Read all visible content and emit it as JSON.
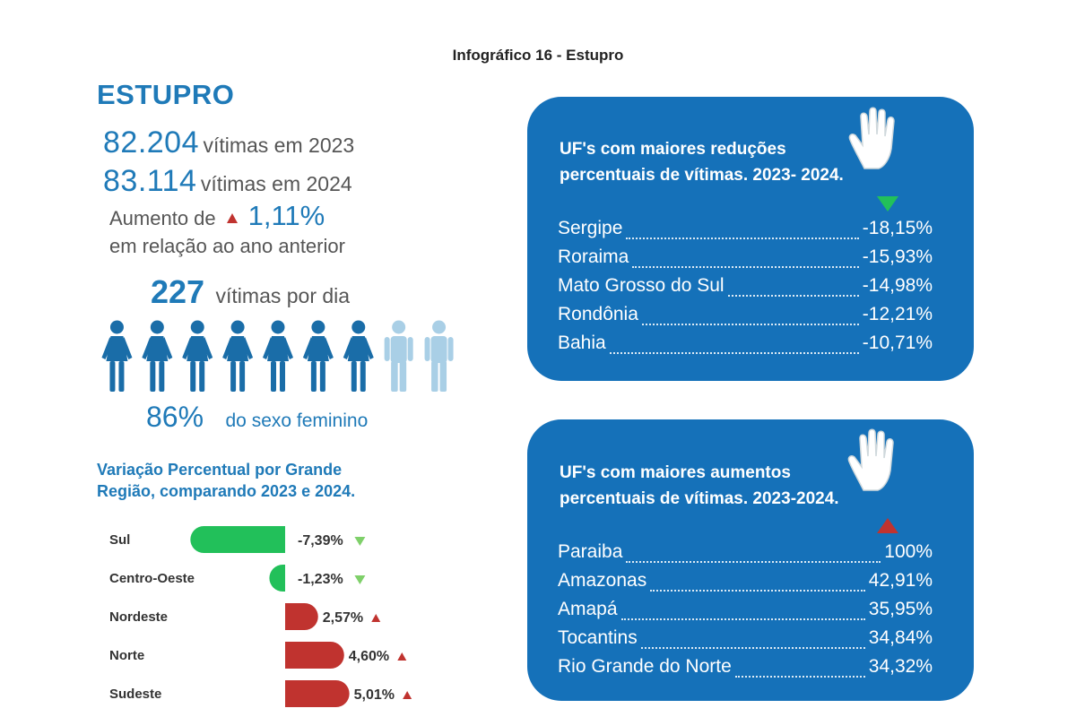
{
  "caption": "Infográfico 16 - Estupro",
  "title": "ESTUPRO",
  "stats": {
    "victims_2023": "82.204",
    "victims_2023_text": "vítimas em 2023",
    "victims_2024": "83.114",
    "victims_2024_text": "vítimas em 2024",
    "increase_label": "Aumento de",
    "increase_value": "1,11%",
    "increase_tail": "em relação ao ano anterior",
    "per_day": "227",
    "per_day_text": "vítimas por dia",
    "female_pct": "86%",
    "female_text": "do sexo feminino",
    "female_fraction": 0.86
  },
  "colors": {
    "accent": "#1f7ab8",
    "card": "#1571b9",
    "increase": "#c0332f",
    "decrease": "#22c05a",
    "person_dark": "#1a6da8",
    "person_light": "#a9cfe6"
  },
  "people_icons": {
    "total": 9,
    "highlighted": 7
  },
  "region_title_line1": "Variação Percentual por Grande",
  "region_title_line2": "Região, comparando 2023 e 2024.",
  "chart_data": {
    "type": "bar",
    "title": "Variação Percentual por Grande Região, comparando 2023 e 2024.",
    "categories": [
      "Sul",
      "Centro-Oeste",
      "Nordeste",
      "Norte",
      "Sudeste"
    ],
    "values": [
      -7.39,
      -1.23,
      2.57,
      4.6,
      5.01
    ],
    "labels": [
      "-7,39%",
      "-1,23%",
      "2,57%",
      "4,60%",
      "5,01%"
    ]
  },
  "reductions": {
    "title_line1": "UF's com maiores reduções",
    "title_line2": "percentuais de vítimas. 2023- 2024.",
    "icon": "hand-icon",
    "items": [
      {
        "name": "Sergipe",
        "value": "-18,15%"
      },
      {
        "name": "Roraima",
        "value": "-15,93%"
      },
      {
        "name": "Mato Grosso do Sul",
        "value": "-14,98%"
      },
      {
        "name": "Rondônia",
        "value": "-12,21%"
      },
      {
        "name": "Bahia",
        "value": "-10,71%"
      }
    ]
  },
  "increases": {
    "title_line1": "UF's com maiores aumentos",
    "title_line2": "percentuais de vítimas. 2023-2024.",
    "icon": "hand-icon",
    "items": [
      {
        "name": "Paraiba",
        "value": "100%"
      },
      {
        "name": "Amazonas",
        "value": "42,91%"
      },
      {
        "name": "Amapá",
        "value": "35,95%"
      },
      {
        "name": "Tocantins",
        "value": "34,84%"
      },
      {
        "name": "Rio Grande do Norte",
        "value": "34,32%"
      }
    ]
  }
}
